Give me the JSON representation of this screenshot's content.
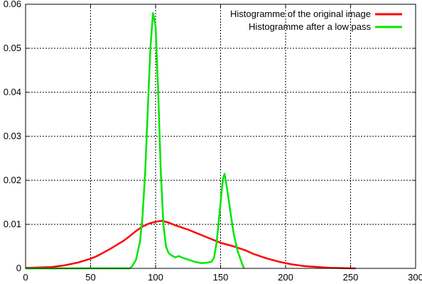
{
  "chart_data": {
    "type": "line",
    "title": "",
    "xlabel": "",
    "ylabel": "",
    "xlim": [
      0,
      300
    ],
    "ylim": [
      0,
      0.06
    ],
    "xticks": [
      0,
      50,
      100,
      150,
      200,
      250,
      300
    ],
    "yticks": [
      0,
      0.01,
      0.02,
      0.03,
      0.04,
      0.05,
      0.06
    ],
    "xtick_labels": [
      "0",
      "50",
      "100",
      "150",
      "200",
      "250",
      "300"
    ],
    "ytick_labels": [
      "0",
      "0.01",
      "0.02",
      "0.03",
      "0.04",
      "0.05",
      "0.06"
    ],
    "grid": true,
    "legend_position": "top-right",
    "series": [
      {
        "name": "Histogramme of the original image",
        "color": "#ff0000",
        "x": [
          0,
          10,
          20,
          30,
          40,
          50,
          55,
          60,
          65,
          70,
          75,
          80,
          85,
          90,
          95,
          100,
          105,
          110,
          115,
          120,
          125,
          130,
          135,
          140,
          145,
          150,
          155,
          160,
          165,
          170,
          175,
          180,
          185,
          190,
          195,
          200,
          205,
          210,
          215,
          220,
          225,
          230,
          235,
          240,
          245,
          250,
          254
        ],
        "y": [
          0.0001,
          0.0002,
          0.0003,
          0.0007,
          0.0013,
          0.0022,
          0.0028,
          0.0036,
          0.0044,
          0.0053,
          0.0062,
          0.0073,
          0.0085,
          0.0095,
          0.0102,
          0.0106,
          0.0108,
          0.0104,
          0.0098,
          0.0093,
          0.0088,
          0.0082,
          0.0076,
          0.007,
          0.0064,
          0.0058,
          0.0054,
          0.005,
          0.0045,
          0.004,
          0.0033,
          0.0028,
          0.0023,
          0.0019,
          0.0015,
          0.0012,
          0.0009,
          0.0007,
          0.0005,
          0.0004,
          0.0003,
          0.0002,
          0.0001,
          0.0001,
          5e-05,
          2e-05,
          0.0
        ]
      },
      {
        "name": "Histogramme after a low pass",
        "color": "#00e600",
        "x": [
          0,
          50,
          80,
          82,
          85,
          88,
          90,
          92,
          94,
          96,
          98,
          100,
          102,
          104,
          106,
          108,
          110,
          112,
          115,
          118,
          120,
          123,
          125,
          130,
          135,
          140,
          143,
          145,
          147,
          149,
          151,
          152,
          153,
          154,
          156,
          158,
          160,
          163,
          166,
          168
        ],
        "y": [
          0.0,
          0.0,
          0.0,
          0.0005,
          0.002,
          0.006,
          0.012,
          0.022,
          0.036,
          0.05,
          0.058,
          0.055,
          0.04,
          0.022,
          0.01,
          0.005,
          0.0035,
          0.003,
          0.0025,
          0.0028,
          0.0025,
          0.0022,
          0.002,
          0.0015,
          0.0012,
          0.0013,
          0.0015,
          0.0025,
          0.006,
          0.012,
          0.018,
          0.0205,
          0.0215,
          0.02,
          0.016,
          0.012,
          0.008,
          0.004,
          0.0015,
          0.0
        ]
      }
    ]
  }
}
